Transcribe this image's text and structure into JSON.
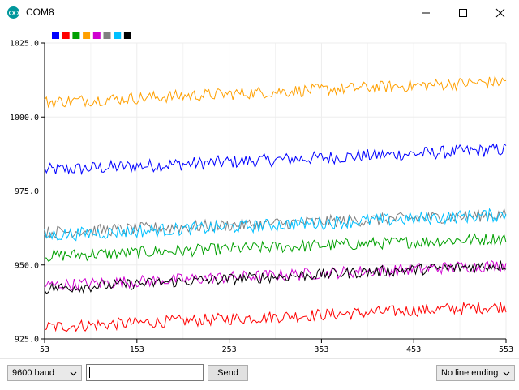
{
  "window": {
    "title": "COM8"
  },
  "legend": {
    "colors": [
      "#0000ff",
      "#ff0000",
      "#00a000",
      "#ffa000",
      "#d000d0",
      "#808080",
      "#00c0ff",
      "#000000"
    ]
  },
  "chart_data": {
    "type": "line",
    "title": "",
    "xlabel": "",
    "ylabel": "",
    "xlim": [
      53,
      553
    ],
    "ylim": [
      925,
      1025
    ],
    "x_ticks": [
      "53",
      "153",
      "253",
      "353",
      "453",
      "553"
    ],
    "y_ticks": [
      "925.0",
      "950.0",
      "975.0",
      "1000.0",
      "1025.0"
    ],
    "grid": true,
    "legend_placement": "top-left",
    "series": [
      {
        "color": "#0000ff",
        "start": 982,
        "end": 989,
        "noise": 1.4
      },
      {
        "color": "#ff0000",
        "start": 929,
        "end": 936,
        "noise": 1.3
      },
      {
        "color": "#00a000",
        "start": 953,
        "end": 959,
        "noise": 1.3
      },
      {
        "color": "#ffa000",
        "start": 1005,
        "end": 1012,
        "noise": 1.3
      },
      {
        "color": "#d000d0",
        "start": 943,
        "end": 950,
        "noise": 1.3
      },
      {
        "color": "#808080",
        "start": 961,
        "end": 967,
        "noise": 1.3
      },
      {
        "color": "#00c0ff",
        "start": 960,
        "end": 967,
        "noise": 1.4
      },
      {
        "color": "#000000",
        "start": 942,
        "end": 950,
        "noise": 1.2
      }
    ]
  },
  "controls": {
    "baud": "9600 baud",
    "input_value": "",
    "send_label": "Send",
    "line_ending": "No line ending"
  }
}
